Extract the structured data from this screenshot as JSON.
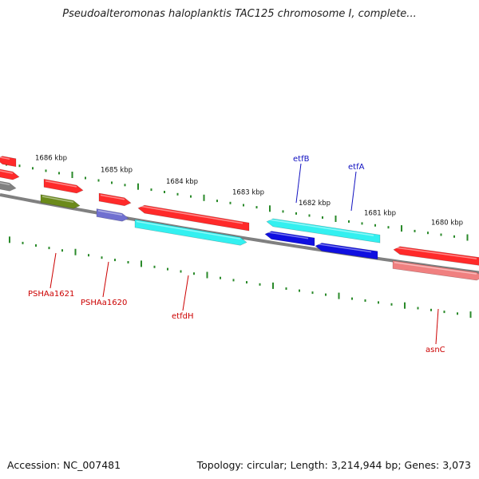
{
  "title": "Pseudoalteromonas haloplanktis TAC125 chromosome I, complete...",
  "footer": {
    "accession": "Accession: NC_007481",
    "topology": "Topology: circular; Length: 3,214,944 bp; Genes: 3,073"
  },
  "colors": {
    "backbone": "#808080",
    "tick": "#2a8a2a",
    "label_red": "#cc0000",
    "label_blue": "#1010c0"
  },
  "tick_labels": [
    "1686 kbp",
    "1685 kbp",
    "1684 kbp",
    "1683 kbp",
    "1682 kbp",
    "1681 kbp",
    "1680 kbp"
  ],
  "genes": [
    {
      "name": "",
      "color": "#ff2a2a",
      "lane": "forward-outer",
      "direction": "right"
    },
    {
      "name": "",
      "color": "#ff2a2a",
      "lane": "forward-outer",
      "direction": "right"
    },
    {
      "name": "",
      "color": "#ff2a2a",
      "lane": "forward-outer",
      "direction": "right"
    },
    {
      "name": "",
      "color": "#ff2a2a",
      "lane": "forward-outer",
      "direction": "left"
    },
    {
      "name": "",
      "color": "#ff2a2a",
      "lane": "forward-outer",
      "direction": "left"
    },
    {
      "name": "etfB",
      "color": "#33f0f0",
      "lane": "reverse-outer",
      "direction": "left"
    },
    {
      "name": "",
      "color": "#ff2a2a",
      "lane": "forward-outer",
      "direction": "left"
    },
    {
      "name": "",
      "color": "#808080",
      "lane": "forward-inner",
      "direction": "right"
    },
    {
      "name": "PSHAa1621",
      "color": "#6b8a1a",
      "lane": "forward-inner",
      "direction": "right"
    },
    {
      "name": "PSHAa1620",
      "color": "#7070d0",
      "lane": "forward-inner",
      "direction": "right"
    },
    {
      "name": "etfdH",
      "color": "#33f0f0",
      "lane": "forward-inner",
      "direction": "right"
    },
    {
      "name": "etfA",
      "color": "#1010e0",
      "lane": "reverse-inner",
      "direction": "left"
    },
    {
      "name": "",
      "color": "#1010e0",
      "lane": "reverse-inner",
      "direction": "left"
    },
    {
      "name": "asnC",
      "color": "#f08080",
      "lane": "forward-inner",
      "direction": "right"
    }
  ],
  "gene_labels": [
    {
      "text": "etfB",
      "color": "#1010c0"
    },
    {
      "text": "etfA",
      "color": "#1010c0"
    },
    {
      "text": "PSHAa1621",
      "color": "#cc0000"
    },
    {
      "text": "PSHAa1620",
      "color": "#cc0000"
    },
    {
      "text": "etfdH",
      "color": "#cc0000"
    },
    {
      "text": "asnC",
      "color": "#cc0000"
    }
  ]
}
